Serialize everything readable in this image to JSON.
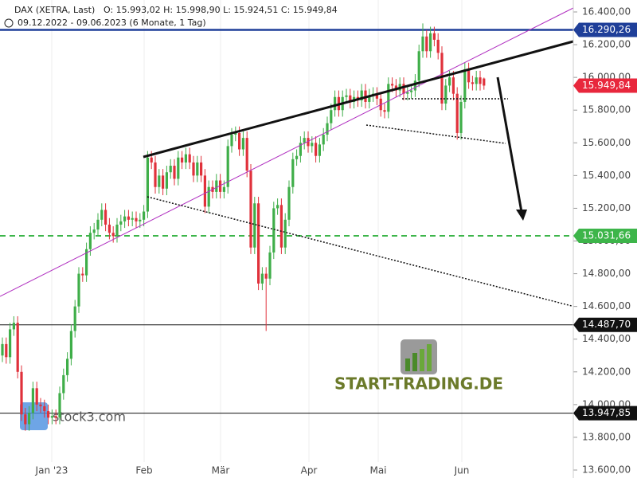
{
  "chart_data": {
    "type": "candlestick",
    "header": {
      "symbol": "DAX (XETRA, Last)",
      "ohlc": "O: 15.993,02  H: 15.998,90  L: 15.924,51  C: 15.949,84",
      "range": "09.12.2022 - 09.06.2023  (6 Monate, 1 Tag)"
    },
    "xlabels": [
      "Jan '23",
      "Feb",
      "Mär",
      "Apr",
      "Mai",
      "Jun"
    ],
    "ylim": [
      13600,
      16400
    ],
    "yticks": [
      {
        "value": 16400,
        "label": "16.400,00"
      },
      {
        "value": 16200,
        "label": "16.200,00"
      },
      {
        "value": 16000,
        "label": "16.000,00"
      },
      {
        "value": 15800,
        "label": "15.800,00"
      },
      {
        "value": 15600,
        "label": "15.600,00"
      },
      {
        "value": 15400,
        "label": "15.400,00"
      },
      {
        "value": 15200,
        "label": "15.200,00"
      },
      {
        "value": 15000,
        "label": "15.000,00"
      },
      {
        "value": 14800,
        "label": "14.800,00"
      },
      {
        "value": 14600,
        "label": "14.600,00"
      },
      {
        "value": 14400,
        "label": "14.400,00"
      },
      {
        "value": 14200,
        "label": "14.200,00"
      },
      {
        "value": 14000,
        "label": "14.000,00"
      },
      {
        "value": 13800,
        "label": "13.800,00"
      },
      {
        "value": 13600,
        "label": "13.600,00"
      }
    ],
    "up_color": "#3fae49",
    "down_color": "#e0313b",
    "levels": [
      {
        "value": 16290.26,
        "label": "16.290,26",
        "color": "#1f3f99",
        "style": "solid"
      },
      {
        "value": 15949.84,
        "label": "15.949,84",
        "color": "#e8273c",
        "style": "none"
      },
      {
        "value": 15031.66,
        "label": "15.031,66",
        "color": "#3db54a",
        "style": "dashed"
      },
      {
        "value": 14487.7,
        "label": "14.487,70",
        "color": "#111111",
        "style": "thin"
      },
      {
        "value": 13947.85,
        "label": "13.947,85",
        "color": "#111111",
        "style": "thin"
      }
    ],
    "watermarks": [
      "START-TRADING.DE",
      "stock3.com"
    ],
    "candles": [
      [
        14300,
        14410,
        14260,
        14370
      ],
      [
        14370,
        14410,
        14250,
        14290
      ],
      [
        14290,
        14500,
        14250,
        14460
      ],
      [
        14460,
        14540,
        14420,
        14500
      ],
      [
        14500,
        14540,
        14160,
        14200
      ],
      [
        14200,
        14240,
        13900,
        13940
      ],
      [
        13940,
        13980,
        13840,
        13880
      ],
      [
        13880,
        13990,
        13840,
        13950
      ],
      [
        13950,
        14140,
        13910,
        14100
      ],
      [
        14100,
        14140,
        13960,
        14000
      ],
      [
        14000,
        14040,
        13950,
        13990
      ],
      [
        13990,
        14030,
        13920,
        13960
      ],
      [
        13960,
        14000,
        13880,
        13920
      ],
      [
        13920,
        13970,
        13880,
        13930
      ],
      [
        13930,
        13970,
        13880,
        13920
      ],
      [
        13920,
        14110,
        13880,
        14070
      ],
      [
        14070,
        14220,
        14030,
        14180
      ],
      [
        14180,
        14320,
        14140,
        14280
      ],
      [
        14280,
        14490,
        14240,
        14450
      ],
      [
        14450,
        14640,
        14410,
        14600
      ],
      [
        14600,
        14840,
        14560,
        14800
      ],
      [
        14800,
        14840,
        14750,
        14790
      ],
      [
        14790,
        14990,
        14750,
        14950
      ],
      [
        14950,
        15090,
        14910,
        15050
      ],
      [
        15050,
        15110,
        15010,
        15070
      ],
      [
        15070,
        15170,
        15030,
        15130
      ],
      [
        15130,
        15230,
        15090,
        15190
      ],
      [
        15190,
        15230,
        15060,
        15100
      ],
      [
        15100,
        15140,
        15010,
        15050
      ],
      [
        15050,
        15090,
        14990,
        15030
      ],
      [
        15030,
        15140,
        14990,
        15100
      ],
      [
        15100,
        15160,
        15060,
        15120
      ],
      [
        15120,
        15190,
        15080,
        15150
      ],
      [
        15150,
        15190,
        15090,
        15130
      ],
      [
        15130,
        15180,
        15090,
        15140
      ],
      [
        15140,
        15180,
        15080,
        15120
      ],
      [
        15120,
        15170,
        15080,
        15130
      ],
      [
        15130,
        15220,
        15090,
        15180
      ],
      [
        15180,
        15550,
        15140,
        15510
      ],
      [
        15510,
        15550,
        15440,
        15480
      ],
      [
        15480,
        15520,
        15290,
        15330
      ],
      [
        15330,
        15440,
        15290,
        15400
      ],
      [
        15400,
        15440,
        15280,
        15320
      ],
      [
        15320,
        15460,
        15280,
        15420
      ],
      [
        15420,
        15500,
        15380,
        15460
      ],
      [
        15460,
        15500,
        15340,
        15380
      ],
      [
        15380,
        15550,
        15340,
        15510
      ],
      [
        15510,
        15550,
        15440,
        15480
      ],
      [
        15480,
        15570,
        15440,
        15530
      ],
      [
        15530,
        15570,
        15440,
        15480
      ],
      [
        15480,
        15520,
        15360,
        15400
      ],
      [
        15400,
        15520,
        15360,
        15480
      ],
      [
        15480,
        15520,
        15360,
        15400
      ],
      [
        15400,
        15440,
        15170,
        15210
      ],
      [
        15210,
        15370,
        15170,
        15330
      ],
      [
        15330,
        15370,
        15260,
        15300
      ],
      [
        15300,
        15410,
        15260,
        15370
      ],
      [
        15370,
        15410,
        15260,
        15300
      ],
      [
        15300,
        15370,
        15260,
        15330
      ],
      [
        15330,
        15620,
        15290,
        15580
      ],
      [
        15580,
        15690,
        15540,
        15650
      ],
      [
        15650,
        15700,
        15610,
        15660
      ],
      [
        15660,
        15700,
        15520,
        15560
      ],
      [
        15560,
        15670,
        15520,
        15630
      ],
      [
        15630,
        15670,
        15390,
        15430
      ],
      [
        15430,
        15470,
        14920,
        14960
      ],
      [
        14960,
        15270,
        14920,
        15230
      ],
      [
        15230,
        15270,
        14700,
        14740
      ],
      [
        14740,
        14840,
        14700,
        14800
      ],
      [
        14800,
        14840,
        14450,
        14770
      ],
      [
        14770,
        14970,
        14730,
        14930
      ],
      [
        14930,
        15240,
        14890,
        15200
      ],
      [
        15200,
        15260,
        15160,
        15220
      ],
      [
        15220,
        15260,
        14920,
        14960
      ],
      [
        14960,
        15170,
        14920,
        15130
      ],
      [
        15130,
        15370,
        15090,
        15330
      ],
      [
        15330,
        15540,
        15290,
        15500
      ],
      [
        15500,
        15560,
        15460,
        15520
      ],
      [
        15520,
        15640,
        15480,
        15600
      ],
      [
        15600,
        15670,
        15560,
        15630
      ],
      [
        15630,
        15670,
        15540,
        15580
      ],
      [
        15580,
        15640,
        15540,
        15600
      ],
      [
        15600,
        15640,
        15480,
        15520
      ],
      [
        15520,
        15630,
        15480,
        15590
      ],
      [
        15590,
        15690,
        15550,
        15650
      ],
      [
        15650,
        15760,
        15610,
        15720
      ],
      [
        15720,
        15840,
        15680,
        15800
      ],
      [
        15800,
        15920,
        15760,
        15880
      ],
      [
        15880,
        15920,
        15760,
        15800
      ],
      [
        15800,
        15920,
        15760,
        15880
      ],
      [
        15880,
        15930,
        15840,
        15890
      ],
      [
        15890,
        15930,
        15810,
        15850
      ],
      [
        15850,
        15920,
        15810,
        15880
      ],
      [
        15880,
        15920,
        15820,
        15860
      ],
      [
        15860,
        15960,
        15820,
        15920
      ],
      [
        15920,
        15960,
        15810,
        15850
      ],
      [
        15850,
        15930,
        15810,
        15890
      ],
      [
        15890,
        15940,
        15850,
        15900
      ],
      [
        15900,
        15940,
        15830,
        15870
      ],
      [
        15870,
        15910,
        15760,
        15800
      ],
      [
        15800,
        15840,
        15750,
        15790
      ],
      [
        15790,
        16000,
        15750,
        15960
      ],
      [
        15960,
        16000,
        15910,
        15950
      ],
      [
        15950,
        15990,
        15880,
        15920
      ],
      [
        15920,
        16000,
        15880,
        15960
      ],
      [
        15960,
        16000,
        15860,
        15900
      ],
      [
        15900,
        15950,
        15860,
        15910
      ],
      [
        15910,
        15960,
        15870,
        15920
      ],
      [
        15920,
        16020,
        15880,
        15980
      ],
      [
        15980,
        16200,
        15940,
        16160
      ],
      [
        16160,
        16330,
        16120,
        16250
      ],
      [
        16250,
        16290,
        16120,
        16160
      ],
      [
        16160,
        16310,
        16120,
        16270
      ],
      [
        16270,
        16310,
        16190,
        16230
      ],
      [
        16230,
        16270,
        16110,
        16150
      ],
      [
        16150,
        16190,
        15800,
        15840
      ],
      [
        15840,
        15990,
        15800,
        15950
      ],
      [
        15950,
        16040,
        15910,
        16000
      ],
      [
        16000,
        16040,
        15860,
        15900
      ],
      [
        15900,
        15940,
        15620,
        15660
      ],
      [
        15660,
        15890,
        15620,
        15850
      ],
      [
        15850,
        16090,
        15810,
        16050
      ],
      [
        16050,
        16090,
        15930,
        15970
      ],
      [
        15970,
        16010,
        15920,
        15960
      ],
      [
        15960,
        16040,
        15920,
        16000
      ],
      [
        16000,
        16040,
        15920,
        15960
      ],
      [
        15993.02,
        15998.9,
        15924.51,
        15949.84
      ]
    ]
  }
}
